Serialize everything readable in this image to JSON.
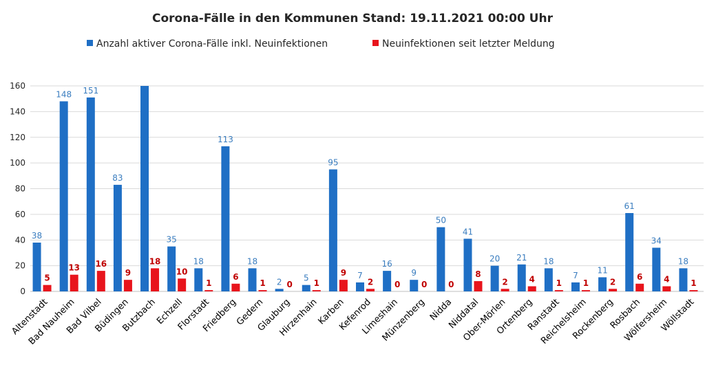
{
  "chart_data": {
    "type": "bar",
    "title": "Corona-Fälle in den Kommunen Stand: 19.11.2021 00:00 Uhr",
    "xlabel": "",
    "ylabel": "",
    "ylim": [
      0,
      160
    ],
    "yticks": [
      0,
      20,
      40,
      60,
      80,
      100,
      120,
      140,
      160
    ],
    "grid": true,
    "legend": "top",
    "categories": [
      "Altenstadt",
      "Bad Nauheim",
      "Bad Vilbel",
      "Büdingen",
      "Butzbach",
      "Echzell",
      "Florstadt",
      "Friedberg",
      "Gedern",
      "Glauburg",
      "Hirzenhain",
      "Karben",
      "Kefenrod",
      "Limeshain",
      "Münzenberg",
      "Nidda",
      "Niddatal",
      "Ober-Mörlen",
      "Ortenberg",
      "Ranstadt",
      "Reichelsheim",
      "Rockenberg",
      "Rosbach",
      "Wölfersheim",
      "Wöllstadt"
    ],
    "series": [
      {
        "name": "Anzahl aktiver Corona-Fälle inkl. Neuinfektionen",
        "color": "#1f6fc5",
        "label_color": "#3a7dbf",
        "values": [
          38,
          148,
          151,
          83,
          160,
          35,
          18,
          113,
          18,
          2,
          5,
          95,
          7,
          16,
          9,
          50,
          41,
          20,
          21,
          18,
          7,
          11,
          61,
          34,
          18
        ],
        "labels": [
          "38",
          "148",
          "151",
          "83",
          "",
          "35",
          "18",
          "113",
          "18",
          "2",
          "5",
          "95",
          "7",
          "16",
          "9",
          "50",
          "41",
          "20",
          "21",
          "18",
          "7",
          "11",
          "61",
          "34",
          "18"
        ]
      },
      {
        "name": "Neuinfektionen seit letzter Meldung",
        "color": "#e8141c",
        "label_color": "#c00000",
        "values": [
          5,
          13,
          16,
          9,
          18,
          10,
          1,
          6,
          1,
          0,
          1,
          9,
          2,
          0,
          0,
          0,
          8,
          2,
          4,
          1,
          1,
          2,
          6,
          4,
          1
        ],
        "labels": [
          "5",
          "13",
          "16",
          "9",
          "18",
          "10",
          "1",
          "6",
          "1",
          "0",
          "1",
          "9",
          "2",
          "0",
          "0",
          "0",
          "8",
          "2",
          "4",
          "1",
          "1",
          "2",
          "6",
          "4",
          "1"
        ]
      }
    ]
  }
}
